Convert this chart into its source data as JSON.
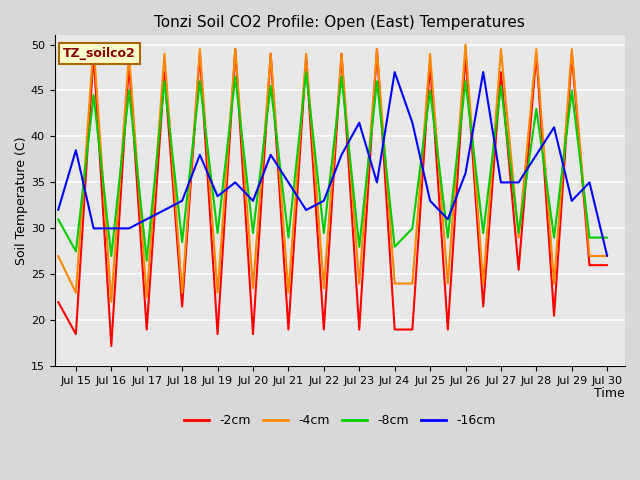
{
  "title": "Tonzi Soil CO2 Profile: Open (East) Temperatures",
  "xlabel": "Time",
  "ylabel": "Soil Temperature (C)",
  "ylim": [
    15,
    51
  ],
  "yticks": [
    15,
    20,
    25,
    30,
    35,
    40,
    45,
    50
  ],
  "legend_label": "TZ_soilco2",
  "line_colors": {
    "-2cm": "#ff0000",
    "-4cm": "#ff8800",
    "-8cm": "#00cc00",
    "-16cm": "#0000ff"
  },
  "x_tick_labels": [
    "Jul 15",
    "Jul 16",
    "Jul 17",
    "Jul 18",
    "Jul 19",
    "Jul 20",
    "Jul 21",
    "Jul 22",
    "Jul 23",
    "Jul 24",
    "Jul 25",
    "Jul 26",
    "Jul 27",
    "Jul 28",
    "Jul 29",
    "Jul 30"
  ],
  "x_ticks_pos": [
    1,
    3,
    5,
    7,
    9,
    11,
    13,
    15,
    17,
    19,
    21,
    23,
    25,
    27,
    29,
    31
  ],
  "data_x": [
    0,
    1,
    2,
    3,
    4,
    5,
    6,
    7,
    8,
    9,
    10,
    11,
    12,
    13,
    14,
    15,
    16,
    17,
    18,
    19,
    20,
    21,
    22,
    23,
    24,
    25,
    26,
    27,
    28,
    29,
    30,
    31
  ],
  "d_2cm": [
    22,
    18.5,
    49,
    17.2,
    48,
    19,
    47,
    21.5,
    49,
    18.5,
    49.5,
    18.5,
    49,
    19,
    48.5,
    19,
    49,
    19,
    49.5,
    19,
    19,
    48,
    19,
    49,
    21.5,
    47,
    25.5,
    49,
    20.5,
    49,
    26,
    26
  ],
  "d_4cm": [
    27,
    23,
    50,
    22,
    49,
    22.5,
    49,
    23,
    49.5,
    23,
    49.5,
    23.5,
    49,
    23,
    49,
    23.5,
    49,
    24,
    49.5,
    24,
    24,
    49,
    24,
    50,
    24,
    49.5,
    29,
    49.5,
    24,
    49.5,
    27,
    27
  ],
  "d_8cm": [
    31,
    27.5,
    44.5,
    27,
    45,
    26.5,
    46,
    28.5,
    46,
    29.5,
    46.5,
    29.5,
    45.5,
    29,
    47,
    29.5,
    46.5,
    28,
    46,
    28,
    30,
    45,
    29,
    46,
    29.5,
    45.5,
    29.5,
    43,
    29,
    45,
    29,
    29
  ],
  "d_16cm": [
    32,
    38.5,
    30,
    30,
    30,
    31,
    32,
    33,
    38,
    33.5,
    35,
    33,
    38,
    35,
    32,
    33,
    38,
    41.5,
    35,
    47,
    41.5,
    33,
    31,
    36,
    47,
    35,
    35,
    38,
    41,
    33,
    35,
    27
  ]
}
